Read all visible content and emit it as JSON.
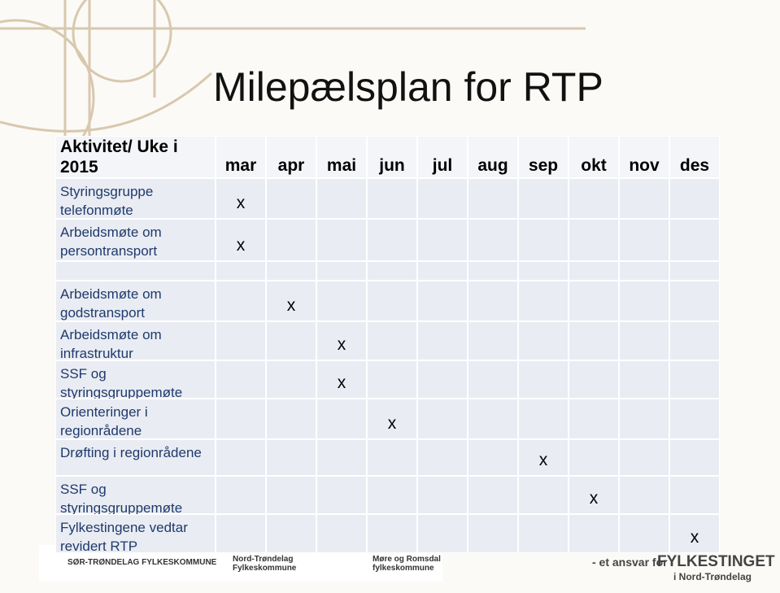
{
  "header": {
    "title": "Milepælsplan for RTP"
  },
  "table": {
    "corner": "Aktivitet/ Uke i 2015",
    "months": [
      "mar",
      "apr",
      "mai",
      "jun",
      "jul",
      "aug",
      "sep",
      "okt",
      "nov",
      "des"
    ],
    "rows": [
      {
        "activity": "Styringsgruppe telefonmøte",
        "cells": [
          "x",
          null,
          null,
          null,
          null,
          null,
          null,
          null,
          null,
          null
        ]
      },
      {
        "activity": "Arbeidsmøte om persontransport",
        "cells": [
          "x",
          null,
          null,
          null,
          null,
          null,
          null,
          null,
          null,
          null
        ]
      },
      {
        "activity": null,
        "cells": [
          null,
          null,
          null,
          null,
          null,
          null,
          null,
          null,
          null,
          null
        ]
      },
      {
        "activity": "Arbeidsmøte om godstransport",
        "cells": [
          null,
          "x",
          null,
          null,
          null,
          null,
          null,
          null,
          null,
          null
        ]
      },
      {
        "activity": "Arbeidsmøte om infrastruktur",
        "cells": [
          null,
          null,
          "x",
          null,
          null,
          null,
          null,
          null,
          null,
          null
        ]
      },
      {
        "activity": "SSF og styringsgruppemøte",
        "cells": [
          null,
          null,
          "x",
          null,
          null,
          null,
          null,
          null,
          null,
          null
        ]
      },
      {
        "activity": "Orienteringer i regionrådene",
        "cells": [
          null,
          null,
          null,
          "x",
          null,
          null,
          null,
          null,
          null,
          null
        ]
      },
      {
        "activity": "Drøfting i regionrådene",
        "cells": [
          null,
          null,
          null,
          null,
          null,
          null,
          "x",
          null,
          null,
          null
        ]
      },
      {
        "activity": "SSF og styringsgruppemøte",
        "cells": [
          null,
          null,
          null,
          null,
          null,
          null,
          null,
          "x",
          null,
          null
        ]
      },
      {
        "activity": "Fylkestingene vedtar revidert RTP",
        "cells": [
          null,
          null,
          null,
          null,
          null,
          null,
          null,
          null,
          null,
          "x"
        ]
      }
    ]
  },
  "footer": {
    "logos": [
      "SØR-TRØNDELAG FYLKESKOMMUNE",
      "Nord-Trøndelag Fylkeskommune",
      "Møre og Romsdal fylkeskommune"
    ],
    "tagline": "- et ansvar for",
    "brand": "FYLKESTINGET",
    "region": "i Nord-Trøndelag"
  }
}
